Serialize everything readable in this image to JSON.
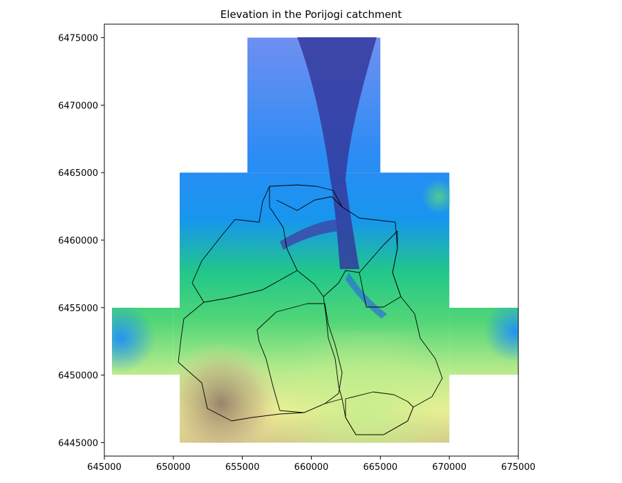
{
  "chart_data": {
    "type": "heatmap",
    "title": "Elevation in the Porijogi catchment",
    "xlabel": "",
    "ylabel": "",
    "xlim": [
      645000,
      675000
    ],
    "ylim": [
      6444000,
      6476000
    ],
    "xticks": [
      645000,
      650000,
      655000,
      660000,
      665000,
      670000,
      675000
    ],
    "yticks": [
      6445000,
      6450000,
      6455000,
      6460000,
      6465000,
      6470000,
      6475000
    ],
    "xtick_labels": [
      "645000",
      "650000",
      "655000",
      "660000",
      "665000",
      "670000",
      "675000"
    ],
    "ytick_labels": [
      "6445000",
      "6450000",
      "6455000",
      "6460000",
      "6465000",
      "6470000",
      "6475000"
    ],
    "colormap": "terrain",
    "colormap_stops": [
      "#333399",
      "#0099ff",
      "#00cc66",
      "#99e67f",
      "#ffff99",
      "#aa8f76",
      "#806a5c"
    ],
    "grid": false,
    "legend": "none",
    "raster_tiles": [
      {
        "name": "north",
        "x": [
          655000,
          665000
        ],
        "y": [
          6465000,
          6475000
        ]
      },
      {
        "name": "middle",
        "x": [
          650000,
          670000
        ],
        "y": [
          6450000,
          6465000
        ]
      },
      {
        "name": "west",
        "x": [
          645000,
          650000
        ],
        "y": [
          6450000,
          6455000
        ]
      },
      {
        "name": "east",
        "x": [
          670000,
          675000
        ],
        "y": [
          6450000,
          6455000
        ]
      },
      {
        "name": "south",
        "x": [
          650000,
          670000
        ],
        "y": [
          6445000,
          6450000
        ]
      }
    ],
    "overlay": "sub-catchment boundaries"
  }
}
